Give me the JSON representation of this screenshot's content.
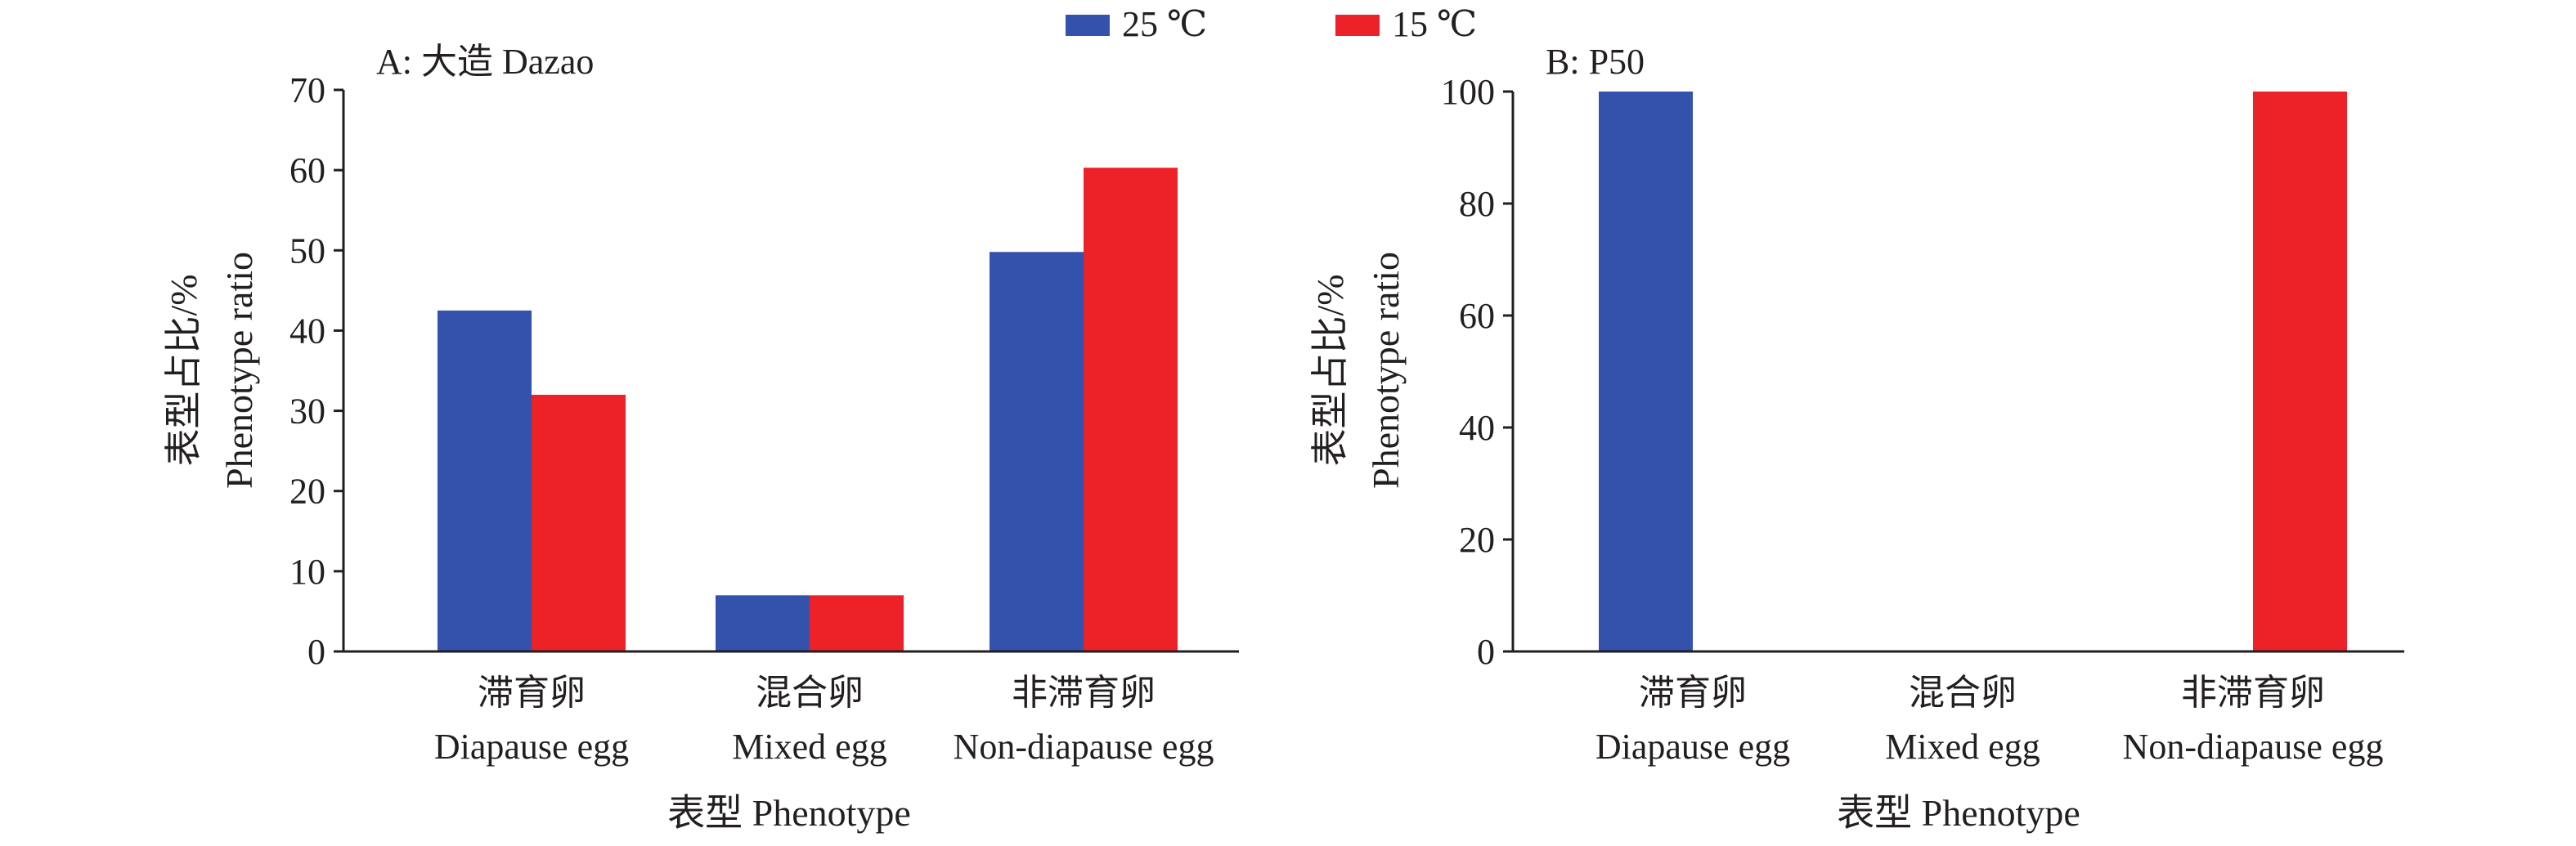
{
  "legend": [
    {
      "name": "25 ℃",
      "color": "#3352ab"
    },
    {
      "name": "15 ℃",
      "color": "#ed2228"
    }
  ],
  "chart_data": [
    {
      "type": "bar",
      "title": "A: 大造 Dazao",
      "categories": [
        {
          "zh": "滞育卵",
          "en": "Diapause egg"
        },
        {
          "zh": "混合卵",
          "en": "Mixed egg"
        },
        {
          "zh": "非滞育卵",
          "en": "Non-diapause egg"
        }
      ],
      "series": [
        {
          "name": "25 ℃",
          "color": "#3352ab",
          "values": [
            42.5,
            7,
            49.8
          ]
        },
        {
          "name": "15 ℃",
          "color": "#ed2228",
          "values": [
            32,
            7,
            60.3
          ]
        }
      ],
      "ylabel_zh": "表型占比/%",
      "ylabel_en": "Phenotype ratio",
      "xlabel": "表型 Phenotype",
      "ylim": [
        0,
        70
      ],
      "yticks": [
        0,
        10,
        20,
        30,
        40,
        50,
        60,
        70
      ],
      "grid": false,
      "legend_position": "top"
    },
    {
      "type": "bar",
      "title": "B: P50",
      "categories": [
        {
          "zh": "滞育卵",
          "en": "Diapause egg"
        },
        {
          "zh": "混合卵",
          "en": "Mixed egg"
        },
        {
          "zh": "非滞育卵",
          "en": "Non-diapause egg"
        }
      ],
      "series": [
        {
          "name": "25 ℃",
          "color": "#3352ab",
          "values": [
            100,
            0,
            0
          ]
        },
        {
          "name": "15 ℃",
          "color": "#ed2228",
          "values": [
            0,
            0,
            100
          ]
        }
      ],
      "ylabel_zh": "表型占比/%",
      "ylabel_en": "Phenotype ratio",
      "xlabel": "表型 Phenotype",
      "ylim": [
        0,
        100
      ],
      "yticks": [
        0,
        20,
        40,
        60,
        80,
        100
      ],
      "grid": false,
      "legend_position": "top"
    }
  ]
}
